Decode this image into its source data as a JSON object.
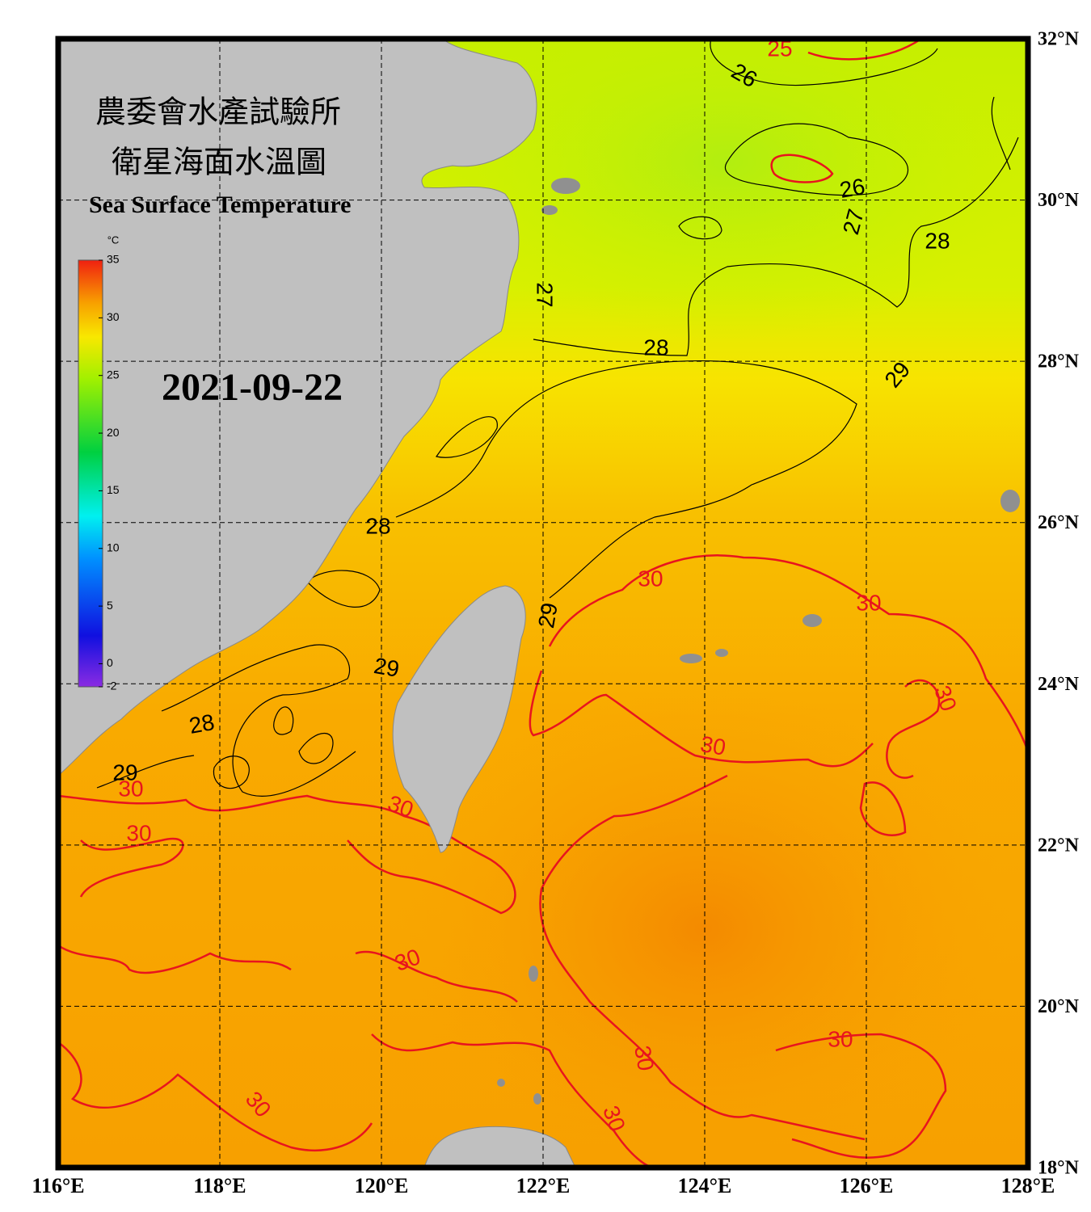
{
  "header": {
    "title_zh_1": "農委會水產試驗所",
    "title_zh_2": "衛星海面水溫圖",
    "title_en": "Sea Surface Temperature",
    "date": "2021-09-22"
  },
  "map": {
    "xlim": [
      116,
      128
    ],
    "ylim": [
      18,
      32
    ],
    "xticks": [
      {
        "value": 116,
        "label": "116°E"
      },
      {
        "value": 118,
        "label": "118°E"
      },
      {
        "value": 120,
        "label": "120°E"
      },
      {
        "value": 122,
        "label": "122°E"
      },
      {
        "value": 124,
        "label": "124°E"
      },
      {
        "value": 126,
        "label": "126°E"
      },
      {
        "value": 128,
        "label": "128°E"
      }
    ],
    "yticks": [
      {
        "value": 18,
        "label": "18°N"
      },
      {
        "value": 20,
        "label": "20°N"
      },
      {
        "value": 22,
        "label": "22°N"
      },
      {
        "value": 24,
        "label": "24°N"
      },
      {
        "value": 26,
        "label": "26°N"
      },
      {
        "value": 28,
        "label": "28°N"
      },
      {
        "value": 30,
        "label": "30°N"
      },
      {
        "value": 32,
        "label": "32°N"
      }
    ],
    "grid": true
  },
  "colorbar": {
    "unit": "°C",
    "lim": [
      -2,
      35
    ],
    "ticks": [
      -2,
      0,
      5,
      10,
      15,
      20,
      25,
      30,
      35
    ]
  },
  "contour_labels": [
    {
      "text": "25",
      "color": "#e8141e"
    },
    {
      "text": "26",
      "color": "#000000"
    },
    {
      "text": "26",
      "color": "#000000"
    },
    {
      "text": "27",
      "color": "#000000"
    },
    {
      "text": "28",
      "color": "#000000"
    },
    {
      "text": "27",
      "color": "#000000"
    },
    {
      "text": "28",
      "color": "#000000"
    },
    {
      "text": "29",
      "color": "#000000"
    },
    {
      "text": "28",
      "color": "#000000"
    },
    {
      "text": "29",
      "color": "#000000"
    },
    {
      "text": "30",
      "color": "#e8141e"
    },
    {
      "text": "30",
      "color": "#e8141e"
    },
    {
      "text": "29",
      "color": "#000000"
    },
    {
      "text": "30",
      "color": "#e8141e"
    },
    {
      "text": "28",
      "color": "#000000"
    },
    {
      "text": "30",
      "color": "#e8141e"
    },
    {
      "text": "29",
      "color": "#000000"
    },
    {
      "text": "30",
      "color": "#e8141e"
    },
    {
      "text": "30",
      "color": "#e8141e"
    },
    {
      "text": "30",
      "color": "#e8141e"
    },
    {
      "text": "30",
      "color": "#e8141e"
    },
    {
      "text": "30",
      "color": "#e8141e"
    },
    {
      "text": "30",
      "color": "#e8141e"
    },
    {
      "text": "30",
      "color": "#e8141e"
    },
    {
      "text": "30",
      "color": "#e8141e"
    }
  ]
}
